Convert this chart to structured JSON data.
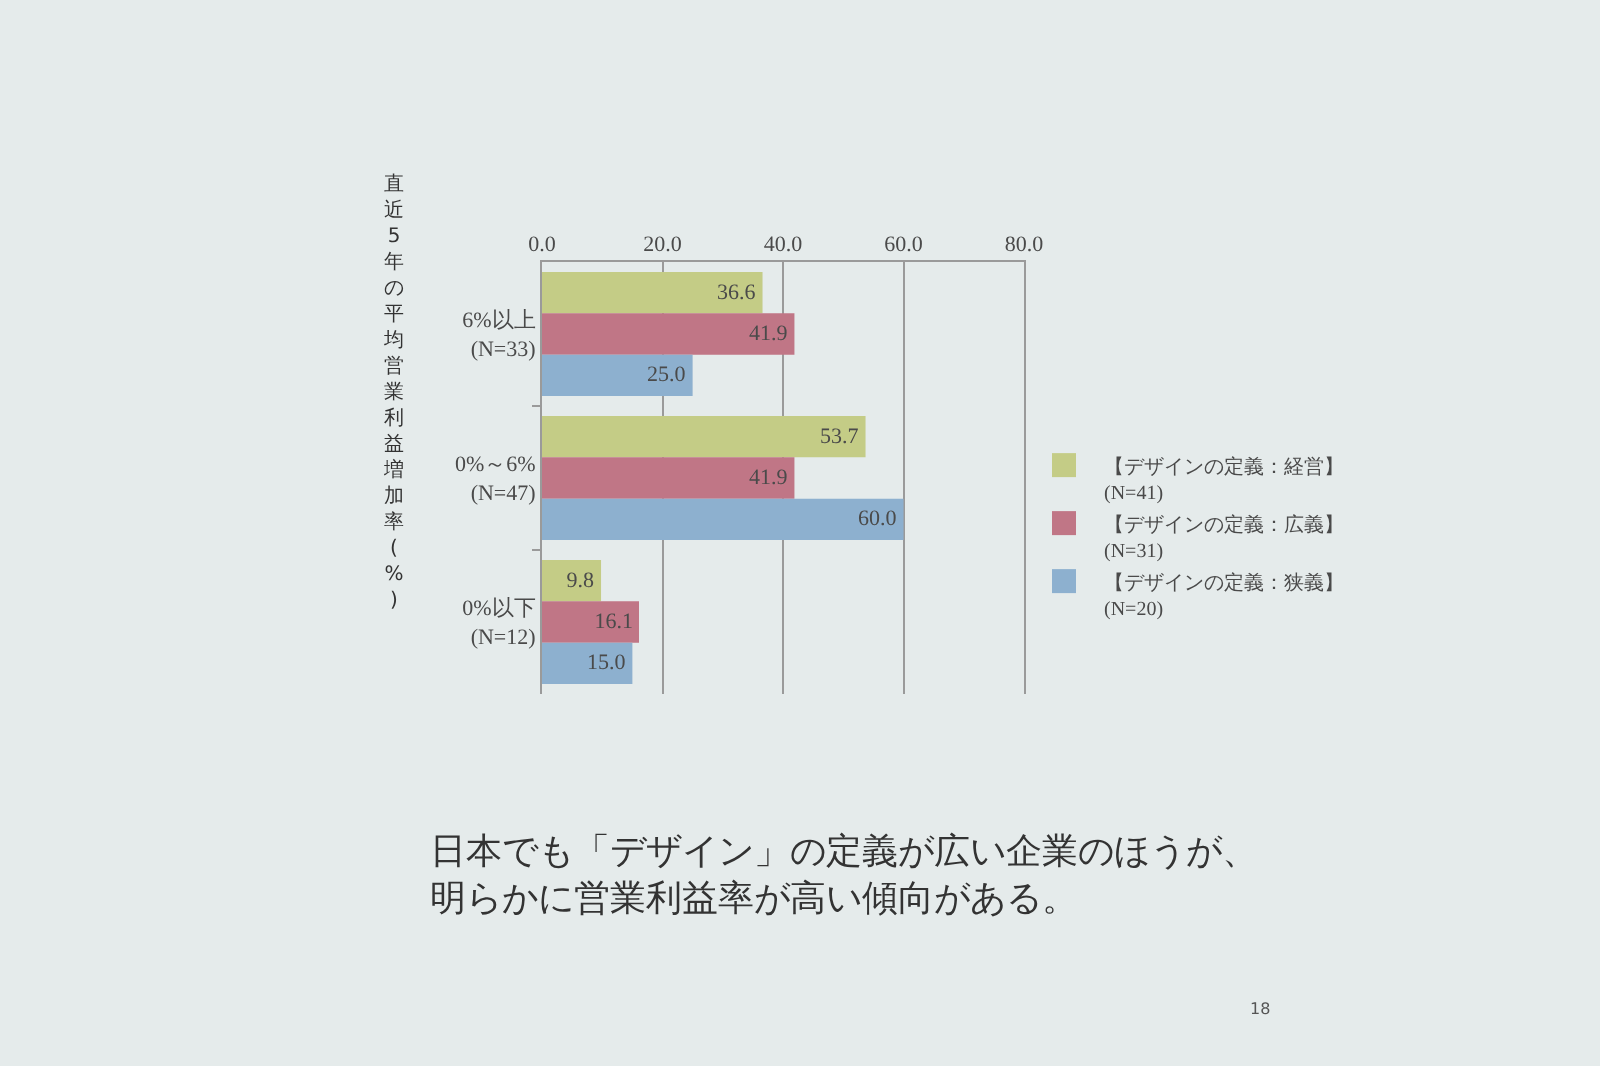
{
  "chart_data": {
    "type": "bar",
    "orientation": "horizontal",
    "title": "日本でも「デザイン」の定義が広い企業のほうが、明らかに営業利益率が高い傾向がある。",
    "ylabel": "直近5年の平均営業利益増加率(%)",
    "categories": [
      "6%以上\n(N=33)",
      "0%～6%\n(N=47)",
      "0%以下\n(N=12)"
    ],
    "series": [
      {
        "name": "【デザインの定義：経営】\n(N=41)",
        "color": "#c4cc86",
        "values": [
          36.6,
          53.7,
          9.8
        ],
        "value_labels": [
          "36.6",
          "53.7",
          "9.8"
        ]
      },
      {
        "name": "【デザインの定義：広義】\n(N=31)",
        "color": "#c07686",
        "values": [
          41.9,
          41.9,
          16.1
        ],
        "value_labels": [
          "41.9",
          "41.9",
          "16.1"
        ]
      },
      {
        "name": "【デザインの定義：狭義】\n(N=20)",
        "color": "#8db0cf",
        "values": [
          25.0,
          60.0,
          15.0
        ],
        "value_labels": [
          "25.0",
          "60.0",
          "15.0"
        ]
      }
    ],
    "xlim": [
      0,
      80
    ],
    "xticks": [
      {
        "value": 0,
        "label": "0.0"
      },
      {
        "value": 20,
        "label": "20.0"
      },
      {
        "value": 40,
        "label": "40.0"
      },
      {
        "value": 60,
        "label": "60.0"
      },
      {
        "value": 80,
        "label": "80.0"
      }
    ],
    "annotations": [
      "18"
    ],
    "grid": "x",
    "legend": "right"
  }
}
